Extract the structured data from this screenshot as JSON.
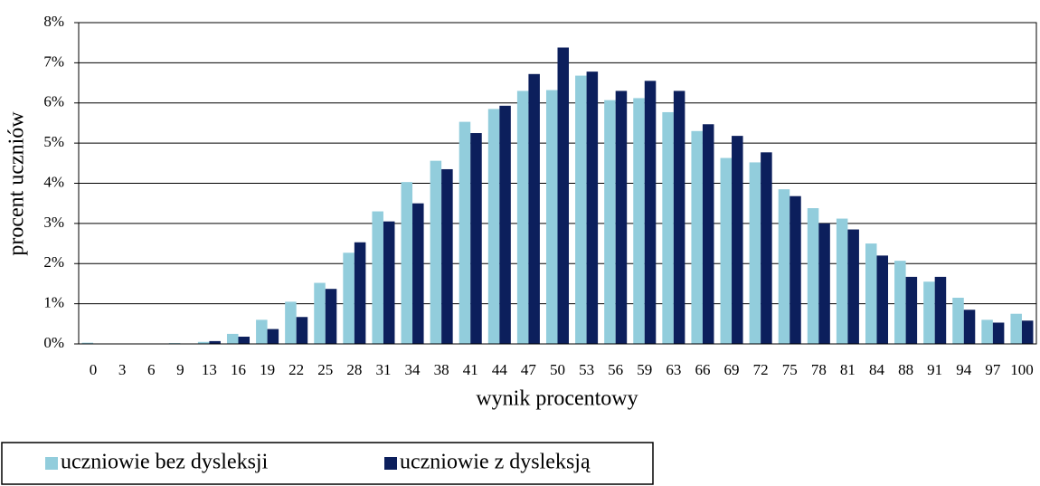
{
  "chart_data": {
    "type": "bar",
    "x_label": "wynik procentowy",
    "y_label": "procent uczniów",
    "categories": [
      "0",
      "3",
      "6",
      "9",
      "13",
      "16",
      "19",
      "22",
      "25",
      "28",
      "31",
      "34",
      "38",
      "41",
      "44",
      "47",
      "50",
      "53",
      "56",
      "59",
      "63",
      "66",
      "69",
      "72",
      "75",
      "78",
      "81",
      "84",
      "88",
      "91",
      "94",
      "97",
      "100"
    ],
    "series": [
      {
        "name": "uczniowie bez dysleksji",
        "color": "#92cddc",
        "values": [
          0.03,
          0.01,
          0.01,
          0.02,
          0.05,
          0.25,
          0.6,
          1.05,
          1.52,
          2.27,
          3.3,
          4.03,
          4.56,
          5.53,
          5.85,
          6.3,
          6.32,
          6.68,
          6.07,
          6.12,
          5.77,
          5.3,
          4.63,
          4.52,
          3.85,
          3.38,
          3.12,
          2.5,
          2.07,
          1.55,
          1.15,
          0.6,
          0.75
        ]
      },
      {
        "name": "uczniowie z dysleksją",
        "color": "#0c1f5c",
        "values": [
          0,
          0,
          0,
          0,
          0.07,
          0.18,
          0.37,
          0.67,
          1.37,
          2.53,
          3.05,
          3.5,
          4.35,
          5.25,
          5.93,
          6.72,
          7.38,
          6.78,
          6.3,
          6.55,
          6.3,
          5.47,
          5.18,
          4.77,
          3.68,
          3.0,
          2.85,
          2.2,
          1.67,
          1.67,
          0.85,
          0.53,
          0.58
        ]
      }
    ],
    "ylim": [
      0,
      8
    ],
    "yticks": [
      {
        "value": 0,
        "label": "0%"
      },
      {
        "value": 1,
        "label": "1%"
      },
      {
        "value": 2,
        "label": "2%"
      },
      {
        "value": 3,
        "label": "3%"
      },
      {
        "value": 4,
        "label": "4%"
      },
      {
        "value": 5,
        "label": "5%"
      },
      {
        "value": 6,
        "label": "6%"
      },
      {
        "value": 7,
        "label": "7%"
      },
      {
        "value": 8,
        "label": "8%"
      }
    ],
    "grid": true,
    "legend": "bottom"
  }
}
